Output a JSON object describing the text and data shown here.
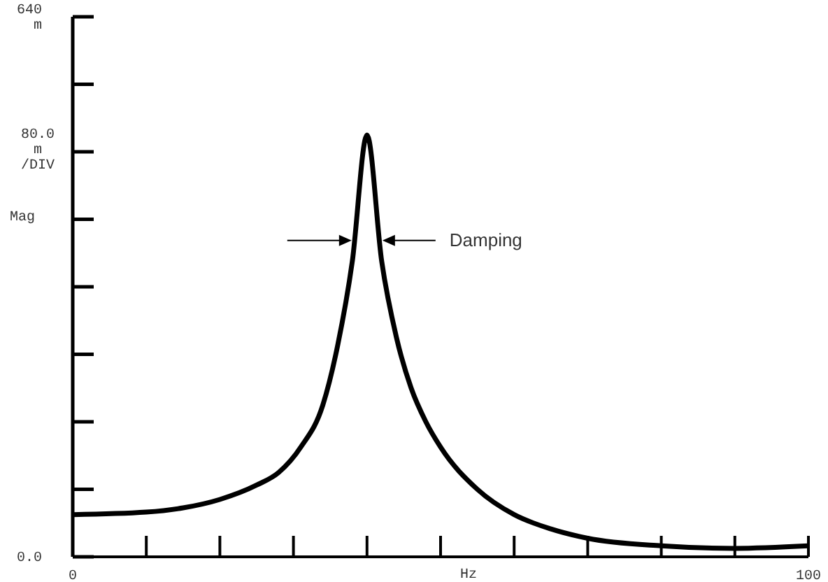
{
  "chart_data": {
    "type": "line",
    "xlabel": "Hz",
    "ylabel": "80.0 m /DIV Mag",
    "x": [
      0,
      10,
      15,
      20,
      25,
      28,
      31,
      34,
      36,
      38,
      40,
      42,
      44,
      46,
      48,
      50,
      55,
      60,
      65,
      70,
      80,
      90,
      100
    ],
    "series": [
      {
        "color": "#000000",
        "values": [
          50,
          53,
          58,
          68,
          85,
          100,
          130,
          180,
          250,
          350,
          500,
          350,
          260,
          200,
          160,
          130,
          80,
          50,
          33,
          22,
          13,
          10,
          13
        ]
      }
    ],
    "xlim": [
      0,
      100
    ],
    "ylim": [
      0,
      640
    ],
    "xticks": [
      0,
      {
        "value": 10,
        "label": null
      },
      {
        "value": 20,
        "label": null
      },
      {
        "value": 30,
        "label": null
      },
      {
        "value": 40,
        "label": null
      },
      {
        "value": 50,
        "label": null
      },
      {
        "value": 60,
        "label": null
      },
      {
        "value": 70,
        "label": null
      },
      {
        "value": 80,
        "label": null
      },
      {
        "value": 90,
        "label": null
      },
      100
    ],
    "yticks": [
      {
        "value": 0,
        "label": "0.0"
      },
      {
        "value": 80,
        "label": null
      },
      {
        "value": 160,
        "label": null
      },
      {
        "value": 240,
        "label": null
      },
      {
        "value": 320,
        "label": null
      },
      {
        "value": 400,
        "label": null
      },
      {
        "value": 480,
        "label": null
      },
      {
        "value": 560,
        "label": null
      },
      {
        "value": 640,
        "label": "640 m"
      }
    ],
    "annotations": [
      "Damping"
    ],
    "grid": false,
    "marker": "none",
    "line_style": "solid"
  }
}
